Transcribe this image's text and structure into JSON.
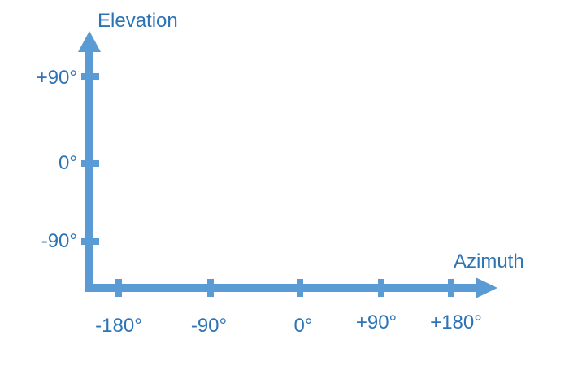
{
  "diagram": {
    "y_axis_label": "Elevation",
    "x_axis_label": "Azimuth",
    "y_ticks": [
      "+90°",
      "0°",
      "-90°"
    ],
    "x_ticks": [
      "-180°",
      "-90°",
      "0°",
      "+90°",
      "+180°"
    ],
    "axis_color": "#5b9bd5",
    "label_color": "#2e74b5"
  }
}
